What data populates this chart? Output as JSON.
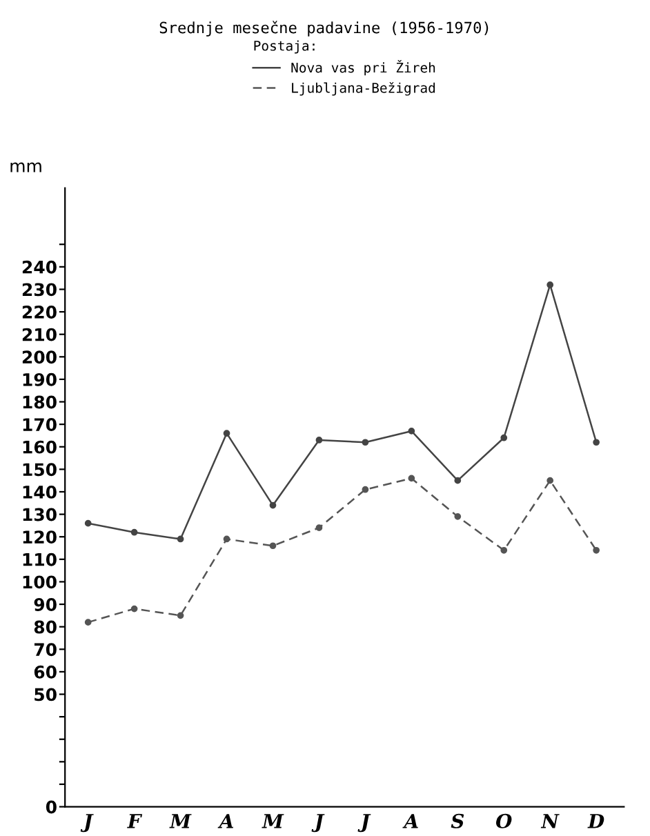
{
  "chart_data": {
    "type": "line",
    "title": "Srednje mesečne padavine (1956-1970)",
    "legend_title": "Postaja:",
    "ylabel": "mm",
    "categories": [
      "J",
      "F",
      "M",
      "A",
      "M",
      "J",
      "J",
      "A",
      "S",
      "O",
      "N",
      "D"
    ],
    "series": [
      {
        "name": "Nova vas pri Žireh",
        "color": "#444444",
        "line_style": "solid",
        "values": [
          126,
          122,
          119,
          166,
          134,
          163,
          162,
          167,
          145,
          164,
          232,
          162
        ]
      },
      {
        "name": "Ljubljana-Bežigrad",
        "color": "#555555",
        "line_style": "dashed",
        "values": [
          82,
          88,
          85,
          119,
          116,
          124,
          141,
          146,
          129,
          114,
          145,
          114
        ]
      }
    ],
    "ylim": [
      0,
      275
    ],
    "yticks": [
      0,
      {
        "value": 10,
        "label": null
      },
      {
        "value": 20,
        "label": null
      },
      {
        "value": 30,
        "label": null
      },
      {
        "value": 40,
        "label": null
      },
      50,
      60,
      70,
      80,
      90,
      100,
      110,
      120,
      130,
      140,
      150,
      160,
      170,
      180,
      190,
      200,
      210,
      220,
      230,
      240,
      {
        "value": 250,
        "label": null
      }
    ],
    "marker": "circle",
    "grid": false,
    "legend": "top"
  }
}
